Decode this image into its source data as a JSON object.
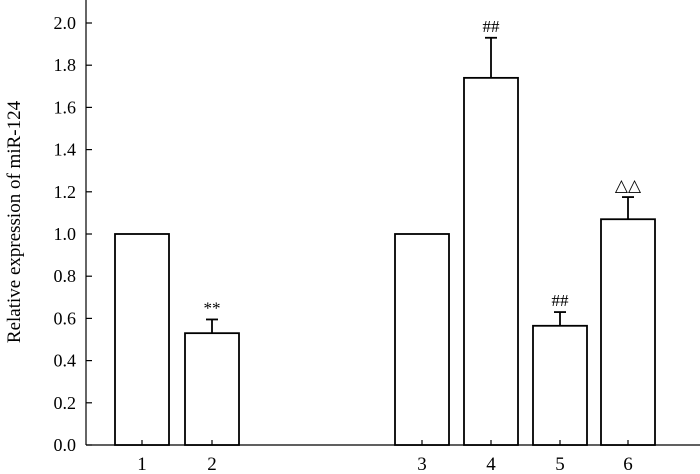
{
  "chart_data": {
    "type": "bar",
    "categories": [
      "1",
      "2",
      "3",
      "4",
      "5",
      "6"
    ],
    "values": [
      1.0,
      0.53,
      1.0,
      1.74,
      0.565,
      1.07
    ],
    "errors": [
      0,
      0.065,
      0,
      0.19,
      0.065,
      0.105
    ],
    "annotations": [
      "",
      "**",
      "",
      "##",
      "##",
      "△△"
    ],
    "title": "",
    "xlabel": "",
    "ylabel": "Relative expression of miR-124",
    "ylim": [
      0,
      2.1
    ],
    "yticks": [
      "0.0",
      "0.2",
      "0.4",
      "0.6",
      "0.8",
      "1.0",
      "1.2",
      "1.4",
      "1.6",
      "1.8",
      "2.0"
    ],
    "grid": false,
    "legend": "none"
  }
}
